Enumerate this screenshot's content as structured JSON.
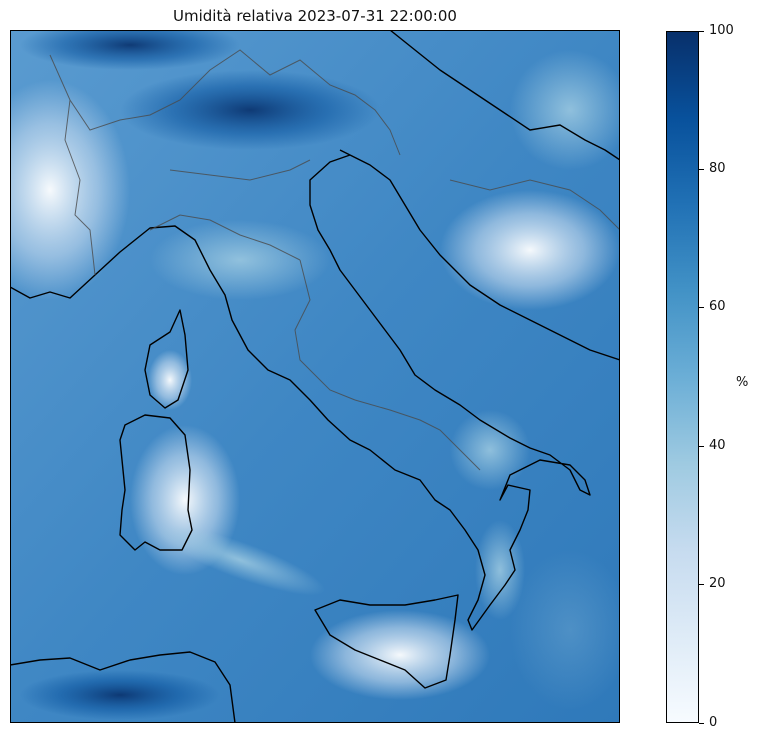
{
  "title": "Umidità relativa 2023-07-31 22:00:00",
  "colorbar": {
    "unit": "%",
    "ticks": [
      "0",
      "20",
      "40",
      "60",
      "80",
      "100"
    ],
    "range": [
      0,
      100
    ],
    "colormap": [
      "#f7fbff",
      "#deebf7",
      "#c6dbef",
      "#9ecae1",
      "#6baed6",
      "#4292c6",
      "#2171b5",
      "#08519c",
      "#08306b"
    ]
  },
  "map": {
    "base_color": "#3d86c3",
    "coastline_color": "#000000",
    "border_color": "#4a4a4a"
  }
}
